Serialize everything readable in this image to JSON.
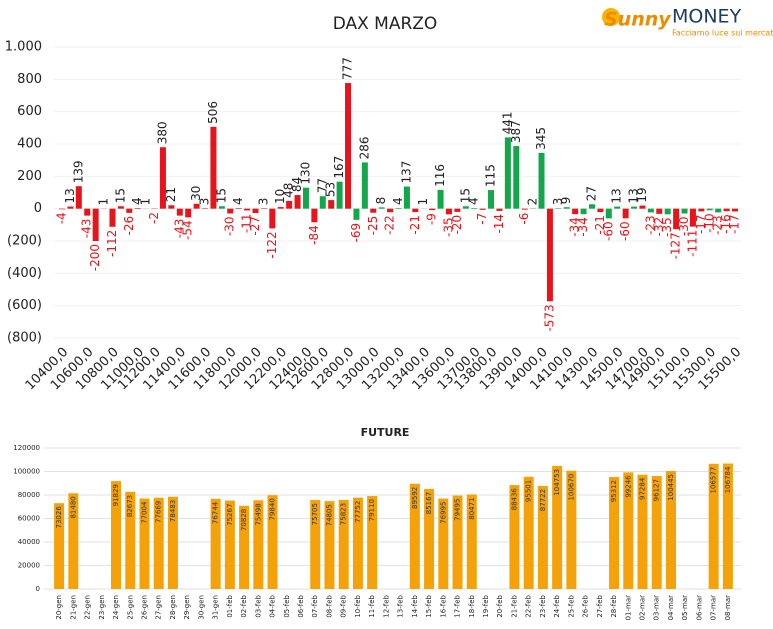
{
  "logo": {
    "brand": "Sunny",
    "name": "MONEY",
    "tagline": "Facciamo luce sui mercati"
  },
  "chart_data": [
    {
      "type": "bar",
      "title": "DAX MARZO",
      "categories": [
        "10400,0",
        null,
        null,
        "10600,0",
        null,
        null,
        "10800,0",
        null,
        null,
        "11000,0",
        null,
        "11200,0",
        null,
        null,
        "11400,0",
        null,
        null,
        "11600,0",
        null,
        null,
        "11800,0",
        null,
        null,
        "12000,0",
        null,
        null,
        "12200,0",
        null,
        null,
        "12400,0",
        null,
        "12600,0",
        null,
        null,
        "12800,0",
        null,
        null,
        "13000,0",
        null,
        null,
        "13200,0",
        null,
        null,
        "13400,0",
        null,
        null,
        "13600,0",
        null,
        null,
        "13700,0",
        null,
        "13800,0",
        null,
        null,
        "13900,0",
        null,
        null,
        "14000,0",
        null,
        null,
        "14100,0",
        null,
        null,
        "14300,0",
        null,
        null,
        "14500,0",
        null,
        null,
        "14700,0",
        null,
        "14900,0",
        null,
        null,
        "15100,0",
        null,
        null,
        "15300,0",
        null,
        null,
        "15500,0"
      ],
      "values": [
        -4,
        13,
        139,
        -43,
        -200,
        1,
        -112,
        15,
        -26,
        4,
        1,
        -2,
        380,
        21,
        -43,
        -54,
        30,
        3,
        506,
        15,
        -30,
        4,
        -11,
        -27,
        3,
        -122,
        10,
        48,
        84,
        130,
        -84,
        77,
        53,
        167,
        777,
        -69,
        286,
        -25,
        8,
        -22,
        4,
        137,
        -21,
        1,
        -9,
        116,
        -35,
        -20,
        15,
        4,
        -7,
        115,
        -14,
        441,
        387,
        -6,
        2,
        345,
        -573,
        3,
        9,
        -34,
        -34,
        27,
        -21,
        -60,
        13,
        -60,
        13,
        19,
        -23,
        -32,
        -35,
        -127,
        -30,
        -111,
        -17,
        -10,
        -23,
        -16,
        -17
      ],
      "colors": [
        "#e8141b",
        "#e8141b",
        "#e8141b",
        "#e8141b",
        "#e8141b",
        "#e8141b",
        "#e8141b",
        "#e8141b",
        "#e8141b",
        "#e8141b",
        "#14a64b",
        "#e8141b",
        "#e8141b",
        "#e8141b",
        "#e8141b",
        "#e8141b",
        "#e8141b",
        "#e8141b",
        "#e8141b",
        "#14a64b",
        "#e8141b",
        "#e8141b",
        "#e8141b",
        "#e8141b",
        "#e8141b",
        "#e8141b",
        "#e8141b",
        "#e8141b",
        "#e8141b",
        "#14a64b",
        "#e8141b",
        "#14a64b",
        "#e8141b",
        "#14a64b",
        "#e8141b",
        "#14a64b",
        "#14a64b",
        "#e8141b",
        "#14a64b",
        "#e8141b",
        "#14a64b",
        "#14a64b",
        "#e8141b",
        "#14a64b",
        "#e8141b",
        "#14a64b",
        "#e8141b",
        "#e8141b",
        "#14a64b",
        "#14a64b",
        "#e8141b",
        "#14a64b",
        "#e8141b",
        "#14a64b",
        "#14a64b",
        "#e8141b",
        "#14a64b",
        "#14a64b",
        "#e8141b",
        "#14a64b",
        "#14a64b",
        "#e8141b",
        "#14a64b",
        "#14a64b",
        "#e8141b",
        "#14a64b",
        "#14a64b",
        "#e8141b",
        "#14a64b",
        "#e8141b",
        "#14a64b",
        "#e8141b",
        "#14a64b",
        "#e8141b",
        "#14a64b",
        "#e8141b",
        "#e8141b",
        "#14a64b",
        "#14a64b",
        "#e8141b",
        "#e8141b"
      ],
      "ylim": [
        -800,
        1000
      ],
      "yticks": [
        {
          "value": 1000,
          "label": "1.000"
        },
        800,
        600,
        400,
        200,
        0,
        {
          "value": -200,
          "label": "(200)"
        },
        {
          "value": -400,
          "label": "(400)"
        },
        {
          "value": -600,
          "label": "(600)"
        },
        {
          "value": -800,
          "label": "(800)"
        }
      ],
      "grid": true
    },
    {
      "type": "bar",
      "title": "FUTURE",
      "categories": [
        "20-gen",
        "21-gen",
        "22-gen",
        "23-gen",
        "24-gen",
        "25-gen",
        "26-gen",
        "27-gen",
        "28-gen",
        "29-gen",
        "30-gen",
        "31-gen",
        "01-feb",
        "02-feb",
        "03-feb",
        "04-feb",
        "05-feb",
        "06-feb",
        "07-feb",
        "08-feb",
        "09-feb",
        "10-feb",
        "11-feb",
        "12-feb",
        "13-feb",
        "14-feb",
        "15-feb",
        "16-feb",
        "17-feb",
        "18-feb",
        "19-feb",
        "20-feb",
        "21-feb",
        "22-feb",
        "23-feb",
        "24-feb",
        "25-feb",
        "26-feb",
        "27-feb",
        "28-feb",
        "01-mar",
        "02-mar",
        "03-mar",
        "04-mar",
        "05-mar",
        "06-mar",
        "07-mar",
        "08-mar"
      ],
      "values": [
        73026,
        81480,
        null,
        null,
        91829,
        82673,
        77004,
        77669,
        78483,
        null,
        null,
        76744,
        75267,
        70828,
        75498,
        79840,
        null,
        null,
        75705,
        74805,
        75823,
        77752,
        79110,
        null,
        null,
        89592,
        85167,
        76995,
        79495,
        80471,
        null,
        null,
        88436,
        95501,
        87722,
        104753,
        100670,
        null,
        null,
        95312,
        99246,
        97284,
        96127,
        100445,
        null,
        null,
        106577,
        106784
      ],
      "color": "#f5a20a",
      "ylim": [
        0,
        120000
      ],
      "yticks": [
        0,
        20000,
        40000,
        60000,
        80000,
        100000,
        120000
      ],
      "grid": true
    }
  ]
}
